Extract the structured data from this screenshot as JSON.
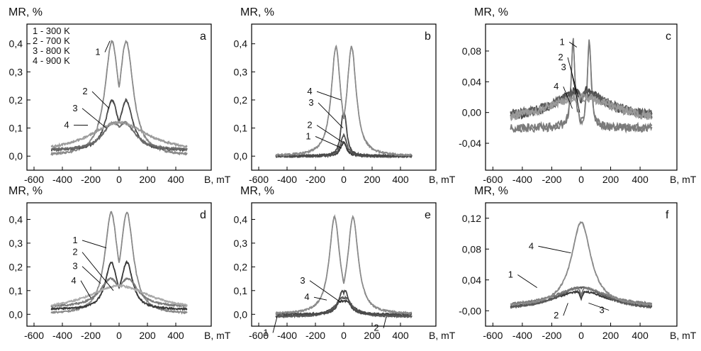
{
  "chart_data": [
    {
      "id": "a",
      "type": "line",
      "panel_label": "a",
      "ylabel": "MR, %",
      "xunit": "B, mT",
      "xlim": [
        -650,
        650
      ],
      "ylim": [
        -0.05,
        0.47
      ],
      "xticks": [
        -600,
        -400,
        -200,
        0,
        200,
        400
      ],
      "xtick_labels": [
        "-600",
        "-400",
        "-200",
        "0",
        "200",
        "400"
      ],
      "yticks": [
        0.0,
        0.1,
        0.2,
        0.3,
        0.4
      ],
      "ytick_labels": [
        "0,0",
        "0,1",
        "0,2",
        "0,3",
        "0,4"
      ],
      "legend": [
        "1 - 300 K",
        "2 - 700 K",
        "3 - 800 K",
        "4 - 900 K"
      ],
      "series": [
        {
          "name": "1",
          "peak": 0.41,
          "peak_pos": 50,
          "dip": 0.1,
          "width": 60,
          "base": 0.0,
          "color": "#8a8a8a"
        },
        {
          "name": "2",
          "peak": 0.2,
          "peak_pos": 50,
          "dip": 0.1,
          "width": 55,
          "base": 0.02,
          "color": "#4a4a4a"
        },
        {
          "name": "3",
          "peak": 0.12,
          "peak_pos": 40,
          "dip": 0.08,
          "width": 90,
          "base": 0.02,
          "color": "#6a6a6a"
        },
        {
          "name": "4",
          "peak": 0.12,
          "peak_pos": 0,
          "dip": 0.12,
          "width": 250,
          "base": 0.01,
          "color": "#9a9a9a"
        }
      ],
      "curve_labels": [
        {
          "text": "1",
          "x": -140,
          "y": 0.36,
          "tx": -65,
          "ty": 0.41
        },
        {
          "text": "2",
          "x": -230,
          "y": 0.22,
          "tx": -70,
          "ty": 0.17
        },
        {
          "text": "3",
          "x": -300,
          "y": 0.16,
          "tx": -90,
          "ty": 0.1
        },
        {
          "text": "4",
          "x": -360,
          "y": 0.1,
          "tx": -220,
          "ty": 0.11
        }
      ]
    },
    {
      "id": "b",
      "type": "line",
      "panel_label": "b",
      "ylabel": "MR, %",
      "xunit": "B, mT",
      "xlim": [
        -650,
        650
      ],
      "ylim": [
        -0.05,
        0.47
      ],
      "xticks": [
        -600,
        -400,
        -200,
        0,
        200,
        400
      ],
      "xtick_labels": [
        "-600",
        "-400",
        "-200",
        "0",
        "200",
        "400"
      ],
      "yticks": [
        0.0,
        0.1,
        0.2,
        0.3,
        0.4
      ],
      "ytick_labels": [
        "0,0",
        "0,1",
        "0,2",
        "0,3",
        "0,4"
      ],
      "series": [
        {
          "name": "1",
          "peak": 0.05,
          "peak_pos": 0,
          "dip": 0.05,
          "width": 25,
          "base": 0.0,
          "color": "#3a3a3a"
        },
        {
          "name": "2",
          "peak": 0.08,
          "peak_pos": 0,
          "dip": 0.07,
          "width": 25,
          "base": 0.0,
          "color": "#5a5a5a"
        },
        {
          "name": "3",
          "peak": 0.15,
          "peak_pos": 5,
          "dip": 0.14,
          "width": 20,
          "base": 0.0,
          "color": "#4a4a4a"
        },
        {
          "name": "4",
          "peak": 0.39,
          "peak_pos": 55,
          "dip": 0.07,
          "width": 40,
          "base": 0.0,
          "color": "#8a8a8a"
        }
      ],
      "curve_labels": [
        {
          "text": "4",
          "x": -230,
          "y": 0.22,
          "tx": -20,
          "ty": 0.2
        },
        {
          "text": "3",
          "x": -220,
          "y": 0.18,
          "tx": -5,
          "ty": 0.1
        },
        {
          "text": "2",
          "x": -230,
          "y": 0.1,
          "tx": -10,
          "ty": 0.05
        },
        {
          "text": "1",
          "x": -240,
          "y": 0.06,
          "tx": -20,
          "ty": 0.03
        }
      ]
    },
    {
      "id": "c",
      "type": "line",
      "panel_label": "c",
      "ylabel": "MR, %",
      "xunit": "B, mT",
      "xlim": [
        -650,
        650
      ],
      "ylim": [
        -0.075,
        0.115
      ],
      "xticks": [
        -600,
        -400,
        -200,
        0,
        200,
        400
      ],
      "xtick_labels": [
        "-600",
        "-400",
        "-200",
        "0",
        "200",
        "400"
      ],
      "yticks": [
        -0.04,
        0.0,
        0.04,
        0.08
      ],
      "ytick_labels": [
        "-0,04",
        "0,00",
        "0,04",
        "0,08"
      ],
      "series": [
        {
          "name": "1",
          "peak": 0.095,
          "peak_pos": 55,
          "dip": -0.06,
          "width": 15,
          "base": -0.02,
          "color": "#7a7a7a"
        },
        {
          "name": "2",
          "peak": 0.03,
          "peak_pos": 0,
          "dip": 0.0,
          "width": 200,
          "base": -0.01,
          "color": "#4a4a4a"
        },
        {
          "name": "3",
          "peak": 0.025,
          "peak_pos": 0,
          "dip": 0.01,
          "width": 250,
          "base": -0.01,
          "color": "#5a5a5a"
        },
        {
          "name": "4",
          "peak": 0.02,
          "peak_pos": 0,
          "dip": 0.02,
          "width": 300,
          "base": -0.015,
          "color": "#9a9a9a"
        }
      ],
      "curve_labels": [
        {
          "text": "1",
          "x": -120,
          "y": 0.088,
          "tx": -30,
          "ty": 0.085
        },
        {
          "text": "2",
          "x": -130,
          "y": 0.068,
          "tx": -20,
          "ty": 0.02
        },
        {
          "text": "3",
          "x": -110,
          "y": 0.055,
          "tx": -10,
          "ty": 0.0
        },
        {
          "text": "4",
          "x": -160,
          "y": 0.03,
          "tx": -60,
          "ty": 0.005
        }
      ]
    },
    {
      "id": "d",
      "type": "line",
      "panel_label": "d",
      "ylabel": "MR, %",
      "xunit": "B, mT",
      "xlim": [
        -650,
        650
      ],
      "ylim": [
        -0.05,
        0.47
      ],
      "xticks": [
        -600,
        -400,
        -200,
        0,
        200,
        400
      ],
      "xtick_labels": [
        "-600",
        "-400",
        "-200",
        "0",
        "200",
        "400"
      ],
      "yticks": [
        0.0,
        0.1,
        0.2,
        0.3,
        0.4
      ],
      "ytick_labels": [
        "0,0",
        "0,1",
        "0,2",
        "0,3",
        "0,4"
      ],
      "series": [
        {
          "name": "1",
          "peak": 0.43,
          "peak_pos": 55,
          "dip": 0.1,
          "width": 55,
          "base": 0.0,
          "color": "#8a8a8a"
        },
        {
          "name": "2",
          "peak": 0.22,
          "peak_pos": 55,
          "dip": 0.08,
          "width": 50,
          "base": 0.02,
          "color": "#3a3a3a"
        },
        {
          "name": "3",
          "peak": 0.15,
          "peak_pos": 60,
          "dip": 0.07,
          "width": 90,
          "base": 0.03,
          "color": "#7a7a7a"
        },
        {
          "name": "4",
          "peak": 0.12,
          "peak_pos": 0,
          "dip": 0.12,
          "width": 280,
          "base": 0.01,
          "color": "#aaaaaa"
        }
      ],
      "curve_labels": [
        {
          "text": "1",
          "x": -300,
          "y": 0.3,
          "tx": -90,
          "ty": 0.28
        },
        {
          "text": "2",
          "x": -300,
          "y": 0.25,
          "tx": -40,
          "ty": 0.1
        },
        {
          "text": "3",
          "x": -300,
          "y": 0.19,
          "tx": -130,
          "ty": 0.13
        },
        {
          "text": "4",
          "x": -310,
          "y": 0.13,
          "tx": -200,
          "ty": 0.07
        }
      ]
    },
    {
      "id": "e",
      "type": "line",
      "panel_label": "e",
      "ylabel": "MR, %",
      "xunit": "B, mT",
      "xlim": [
        -650,
        650
      ],
      "ylim": [
        -0.05,
        0.47
      ],
      "xticks": [
        -600,
        -400,
        -200,
        0,
        200,
        400
      ],
      "xtick_labels": [
        "-600",
        "-400",
        "-200",
        "0",
        "200",
        "400"
      ],
      "yticks": [
        0.0,
        0.1,
        0.2,
        0.3,
        0.4
      ],
      "ytick_labels": [
        "0,0",
        "0,1",
        "0,2",
        "0,3",
        "0,4"
      ],
      "series": [
        {
          "name": "1",
          "peak": 0.06,
          "peak_pos": 0,
          "dip": 0.05,
          "width": 80,
          "base": -0.01,
          "color": "#3a3a3a"
        },
        {
          "name": "2",
          "peak": 0.07,
          "peak_pos": 10,
          "dip": 0.06,
          "width": 60,
          "base": -0.01,
          "color": "#5a5a5a"
        },
        {
          "name": "3",
          "peak": 0.1,
          "peak_pos": 10,
          "dip": 0.07,
          "width": 30,
          "base": 0.0,
          "color": "#4a4a4a"
        },
        {
          "name": "4",
          "peak": 0.41,
          "peak_pos": 65,
          "dip": 0.07,
          "width": 45,
          "base": 0.0,
          "color": "#8a8a8a"
        }
      ],
      "curve_labels": [
        {
          "text": "4",
          "x": -250,
          "y": 0.06,
          "tx": -120,
          "ty": 0.06
        },
        {
          "text": "3",
          "x": -280,
          "y": 0.13,
          "tx": -20,
          "ty": 0.05
        },
        {
          "text": "1",
          "x": -540,
          "y": -0.09,
          "tx": -470,
          "ty": -0.01
        },
        {
          "text": "2",
          "x": 240,
          "y": -0.07,
          "tx": 300,
          "ty": -0.01
        }
      ]
    },
    {
      "id": "f",
      "type": "line",
      "panel_label": "f",
      "ylabel": "MR, %",
      "xunit": "B, mT",
      "xlim": [
        -650,
        650
      ],
      "ylim": [
        -0.02,
        0.14
      ],
      "xticks": [
        -600,
        -400,
        -200,
        0,
        200,
        400
      ],
      "xtick_labels": [
        "-600",
        "-400",
        "-200",
        "0",
        "200",
        "400"
      ],
      "yticks": [
        0.0,
        0.04,
        0.08,
        0.12
      ],
      "ytick_labels": [
        "-0,00",
        "0,04",
        "0,08",
        "0,12"
      ],
      "series": [
        {
          "name": "1",
          "peak": 0.025,
          "peak_pos": 0,
          "dip": 0.01,
          "width": 250,
          "base": 0.0,
          "color": "#3a3a3a"
        },
        {
          "name": "2",
          "peak": 0.03,
          "peak_pos": 10,
          "dip": 0.015,
          "width": 200,
          "base": 0.0,
          "color": "#5a5a5a"
        },
        {
          "name": "3",
          "peak": 0.03,
          "peak_pos": 0,
          "dip": 0.015,
          "width": 220,
          "base": 0.005,
          "color": "#7a7a7a"
        },
        {
          "name": "4",
          "peak": 0.115,
          "peak_pos": 0,
          "dip": 0.115,
          "width": 80,
          "base": 0.005,
          "color": "#8a8a8a"
        }
      ],
      "curve_labels": [
        {
          "text": "4",
          "x": -330,
          "y": 0.08,
          "tx": -70,
          "ty": 0.075
        },
        {
          "text": "1",
          "x": -470,
          "y": 0.043,
          "tx": -300,
          "ty": 0.03
        },
        {
          "text": "2",
          "x": -160,
          "y": -0.01,
          "tx": -90,
          "ty": 0.01
        },
        {
          "text": "3",
          "x": 150,
          "y": -0.003,
          "tx": 50,
          "ty": 0.01
        }
      ]
    }
  ]
}
